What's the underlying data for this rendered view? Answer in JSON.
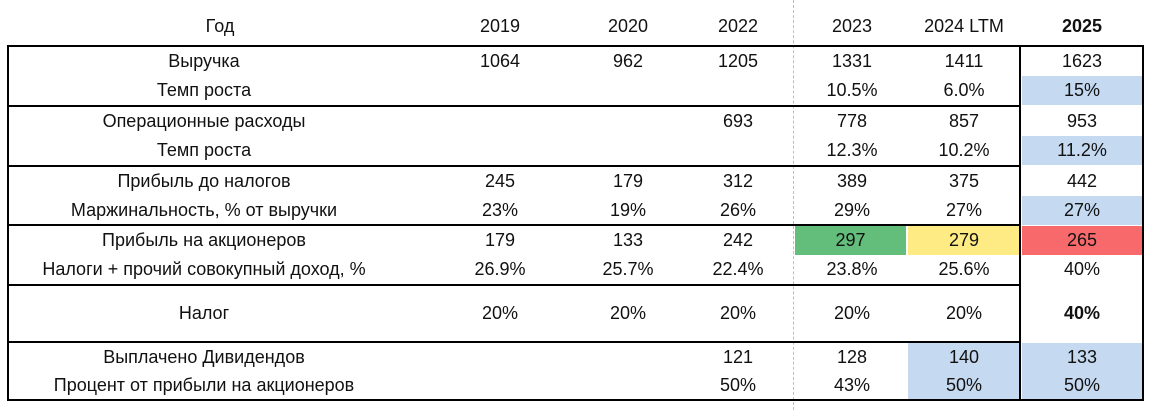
{
  "header": {
    "label": "Год",
    "years": [
      "2019",
      "2020",
      "2022",
      "2023",
      "2024 LTM",
      "2025"
    ]
  },
  "rows": [
    {
      "label": "Выручка",
      "values": [
        "1064",
        "962",
        "1205",
        "1331",
        "1411",
        "1623"
      ]
    },
    {
      "label": "Темп роста",
      "values": [
        "",
        "",
        "",
        "10.5%",
        "6.0%",
        "15%"
      ]
    },
    {
      "label": "Операционные расходы",
      "values": [
        "",
        "",
        "693",
        "778",
        "857",
        "953"
      ]
    },
    {
      "label": "Темп роста",
      "values": [
        "",
        "",
        "",
        "12.3%",
        "10.2%",
        "11.2%"
      ]
    },
    {
      "label": "Прибыль до налогов",
      "values": [
        "245",
        "179",
        "312",
        "389",
        "375",
        "442"
      ]
    },
    {
      "label": "Маржинальность, % от выручки",
      "values": [
        "23%",
        "19%",
        "26%",
        "29%",
        "27%",
        "27%"
      ]
    },
    {
      "label": "Прибыль на акционеров",
      "values": [
        "179",
        "133",
        "242",
        "297",
        "279",
        "265"
      ]
    },
    {
      "label": "Налоги + прочий совокупный доход, %",
      "values": [
        "26.9%",
        "25.7%",
        "22.4%",
        "23.8%",
        "25.6%",
        "40%"
      ]
    },
    {
      "label": "Налог",
      "values": [
        "20%",
        "20%",
        "20%",
        "20%",
        "20%",
        "40%"
      ]
    },
    {
      "label": "Выплачено Дивидендов",
      "values": [
        "",
        "",
        "121",
        "128",
        "140",
        "133"
      ]
    },
    {
      "label": "Процент от прибыли на акционеров",
      "values": [
        "",
        "",
        "50%",
        "43%",
        "50%",
        "50%"
      ]
    }
  ],
  "colors": {
    "input_blue": "#c5d9f1",
    "high_green": "#63be7b",
    "mid_yellow": "#ffeb84",
    "low_red": "#f8696b"
  }
}
